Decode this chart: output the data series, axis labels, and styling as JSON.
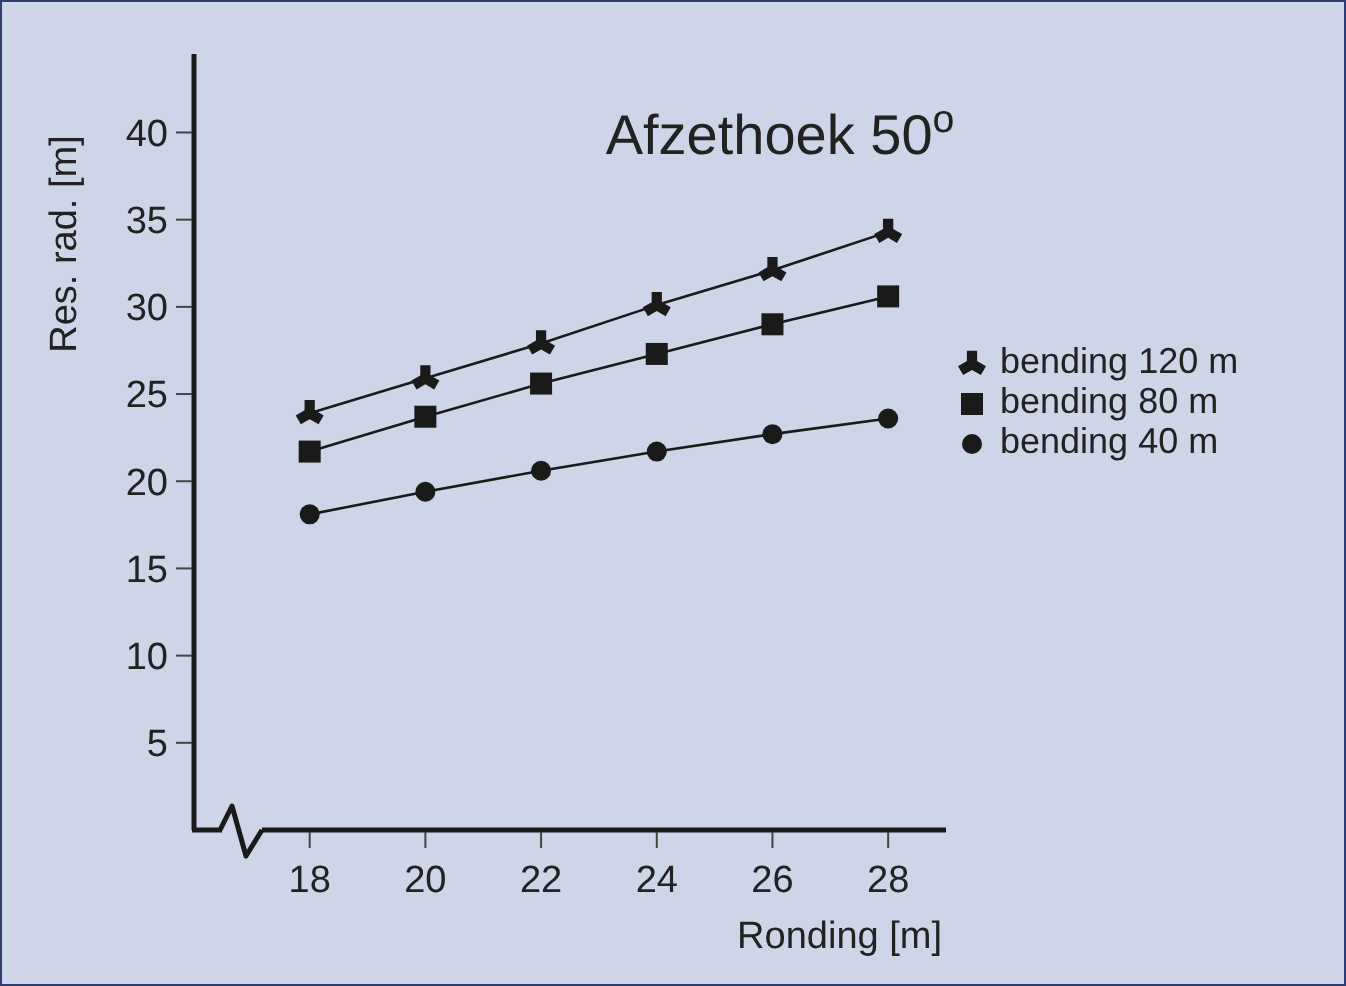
{
  "chart_data": {
    "type": "line",
    "title": "Afzethoek 50$^{o}$",
    "xlabel": "Ronding [m]",
    "ylabel": "Res. rad. [m]",
    "x": [
      18,
      20,
      22,
      24,
      26,
      28
    ],
    "xlim": [
      16,
      29
    ],
    "xticks": [
      18,
      20,
      22,
      24,
      26,
      28
    ],
    "ylim": [
      0,
      44.5
    ],
    "yticks": [
      5,
      10,
      15,
      20,
      25,
      30,
      35,
      40
    ],
    "grid": false,
    "legend": "right",
    "series": [
      {
        "name": "bending 120 m",
        "color": "#1a1a1a",
        "marker": "star",
        "values": [
          23.9,
          25.9,
          27.9,
          30.1,
          32.1,
          34.3
        ]
      },
      {
        "name": "bending 80 m",
        "color": "#1a1a1a",
        "marker": "square",
        "values": [
          21.7,
          23.7,
          25.6,
          27.3,
          29.0,
          30.6
        ]
      },
      {
        "name": "bending 40 m",
        "color": "#1a1a1a",
        "marker": "circle",
        "values": [
          18.1,
          19.4,
          20.6,
          21.7,
          22.7,
          23.6
        ]
      }
    ]
  }
}
